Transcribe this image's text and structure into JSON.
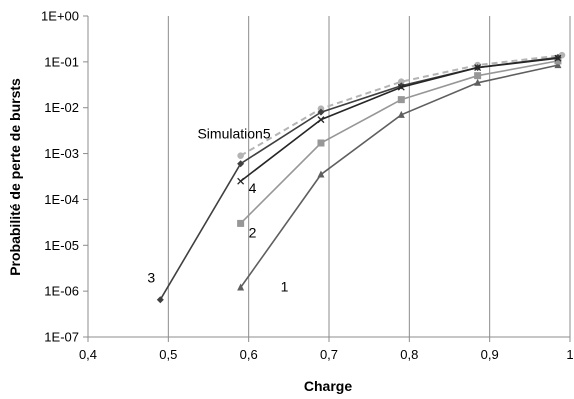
{
  "chart_data": {
    "type": "line",
    "title": "",
    "xlabel": "Charge",
    "ylabel": "Probabilité de perte de bursts",
    "xlim": [
      0.4,
      1.0
    ],
    "ylim": [
      1e-07,
      1
    ],
    "yscale": "log",
    "grid": "vertical",
    "x_ticks": [
      "0,4",
      "0,5",
      "0,6",
      "0,7",
      "0,8",
      "0,9",
      "1"
    ],
    "y_ticks": [
      "1E-07",
      "1E-06",
      "1E-05",
      "1E-04",
      "1E-03",
      "1E-02",
      "1E-01",
      "1E+00"
    ],
    "series": [
      {
        "name": "1",
        "color": "#5f5f5f",
        "marker": "triangle",
        "dash": false,
        "x": [
          0.59,
          0.69,
          0.79,
          0.885,
          0.985
        ],
        "y": [
          1.2e-06,
          0.00035,
          0.007,
          0.035,
          0.085
        ]
      },
      {
        "name": "2",
        "color": "#979797",
        "marker": "square",
        "dash": false,
        "x": [
          0.59,
          0.69,
          0.79,
          0.885,
          0.985
        ],
        "y": [
          3e-05,
          0.0017,
          0.015,
          0.05,
          0.105
        ]
      },
      {
        "name": "3",
        "color": "#404040",
        "marker": "diamond",
        "dash": false,
        "x": [
          0.49,
          0.59,
          0.69,
          0.79,
          0.885,
          0.985
        ],
        "y": [
          6.5e-07,
          0.0006,
          0.008,
          0.03,
          0.075,
          0.125
        ]
      },
      {
        "name": "4",
        "color": "#262626",
        "marker": "x",
        "dash": false,
        "x": [
          0.59,
          0.69,
          0.79,
          0.885,
          0.985
        ],
        "y": [
          0.00025,
          0.0055,
          0.028,
          0.075,
          0.12
        ]
      },
      {
        "name": "Simulation5",
        "color": "#b4b4b4",
        "marker": "circle",
        "dash": true,
        "x": [
          0.59,
          0.69,
          0.79,
          0.885,
          0.99
        ],
        "y": [
          0.0009,
          0.0095,
          0.037,
          0.085,
          0.14
        ]
      }
    ],
    "annotations": [
      "1",
      "2",
      "3",
      "4",
      "Simulation5"
    ]
  }
}
